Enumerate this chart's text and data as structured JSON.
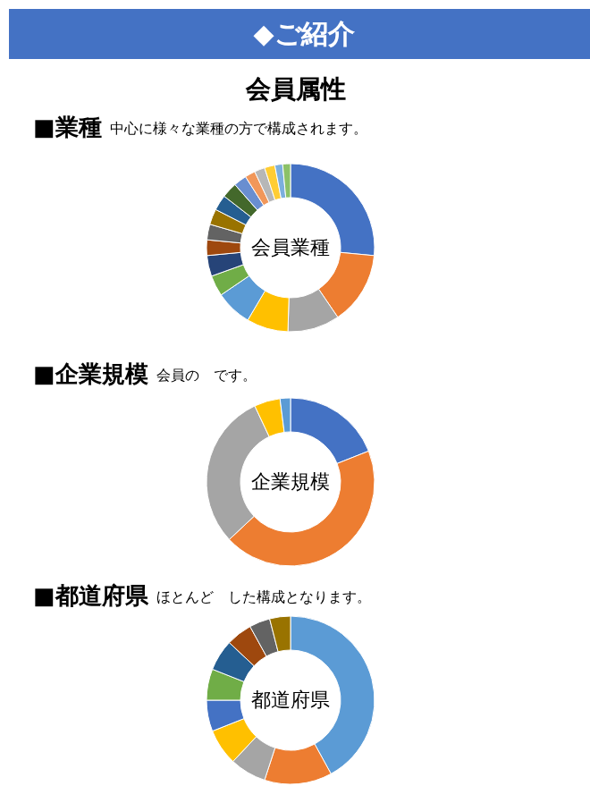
{
  "chart_data": [
    {
      "type": "donut",
      "title": "■業種",
      "subtitle": "中心に様々な業種の方で構成されます。",
      "annotations": [
        "◆ご紹介",
        "会員属性",
        "会員業種"
      ],
      "categories": [
        null,
        null,
        null,
        null,
        null,
        null,
        null,
        null,
        null,
        null,
        null,
        null,
        null,
        null,
        null,
        null,
        null,
        null
      ],
      "values": [
        26.5,
        14,
        10,
        8,
        7,
        4,
        4,
        3,
        3,
        3,
        3,
        3,
        2.5,
        2,
        2,
        2,
        1.5,
        1.5
      ],
      "colors": [
        "#4472c4",
        "#ed7d31",
        "#a5a5a5",
        "#ffc000",
        "#5b9bd5",
        "#70ad47",
        "#264478",
        "#9e480e",
        "#636363",
        "#997300",
        "#255e91",
        "#43682b",
        "#698ed0",
        "#f1975a",
        "#b7b7b7",
        "#ffcd33",
        "#7cafdd",
        "#8cc168"
      ]
    },
    {
      "type": "donut",
      "title": "■企業規模",
      "subtitle": "会員の　です。",
      "annotations": [
        "企業規模"
      ],
      "categories": [
        null,
        null,
        null,
        null,
        null
      ],
      "values": [
        19,
        44,
        30,
        5,
        2
      ],
      "colors": [
        "#4472c4",
        "#ed7d31",
        "#a5a5a5",
        "#ffc000",
        "#5b9bd5"
      ]
    },
    {
      "type": "donut",
      "title": "■都道府県",
      "subtitle": "ほとんど　した構成となります。",
      "annotations": [
        "都道府県"
      ],
      "categories": [
        null,
        null,
        null,
        null,
        null,
        null,
        null,
        null,
        null,
        null
      ],
      "values": [
        42,
        13,
        7,
        7,
        6,
        6,
        6,
        5,
        4,
        4
      ],
      "colors": [
        "#5b9bd5",
        "#ed7d31",
        "#a5a5a5",
        "#ffc000",
        "#4472c4",
        "#70ad47",
        "#255e91",
        "#9e480e",
        "#636363",
        "#997300"
      ]
    }
  ]
}
